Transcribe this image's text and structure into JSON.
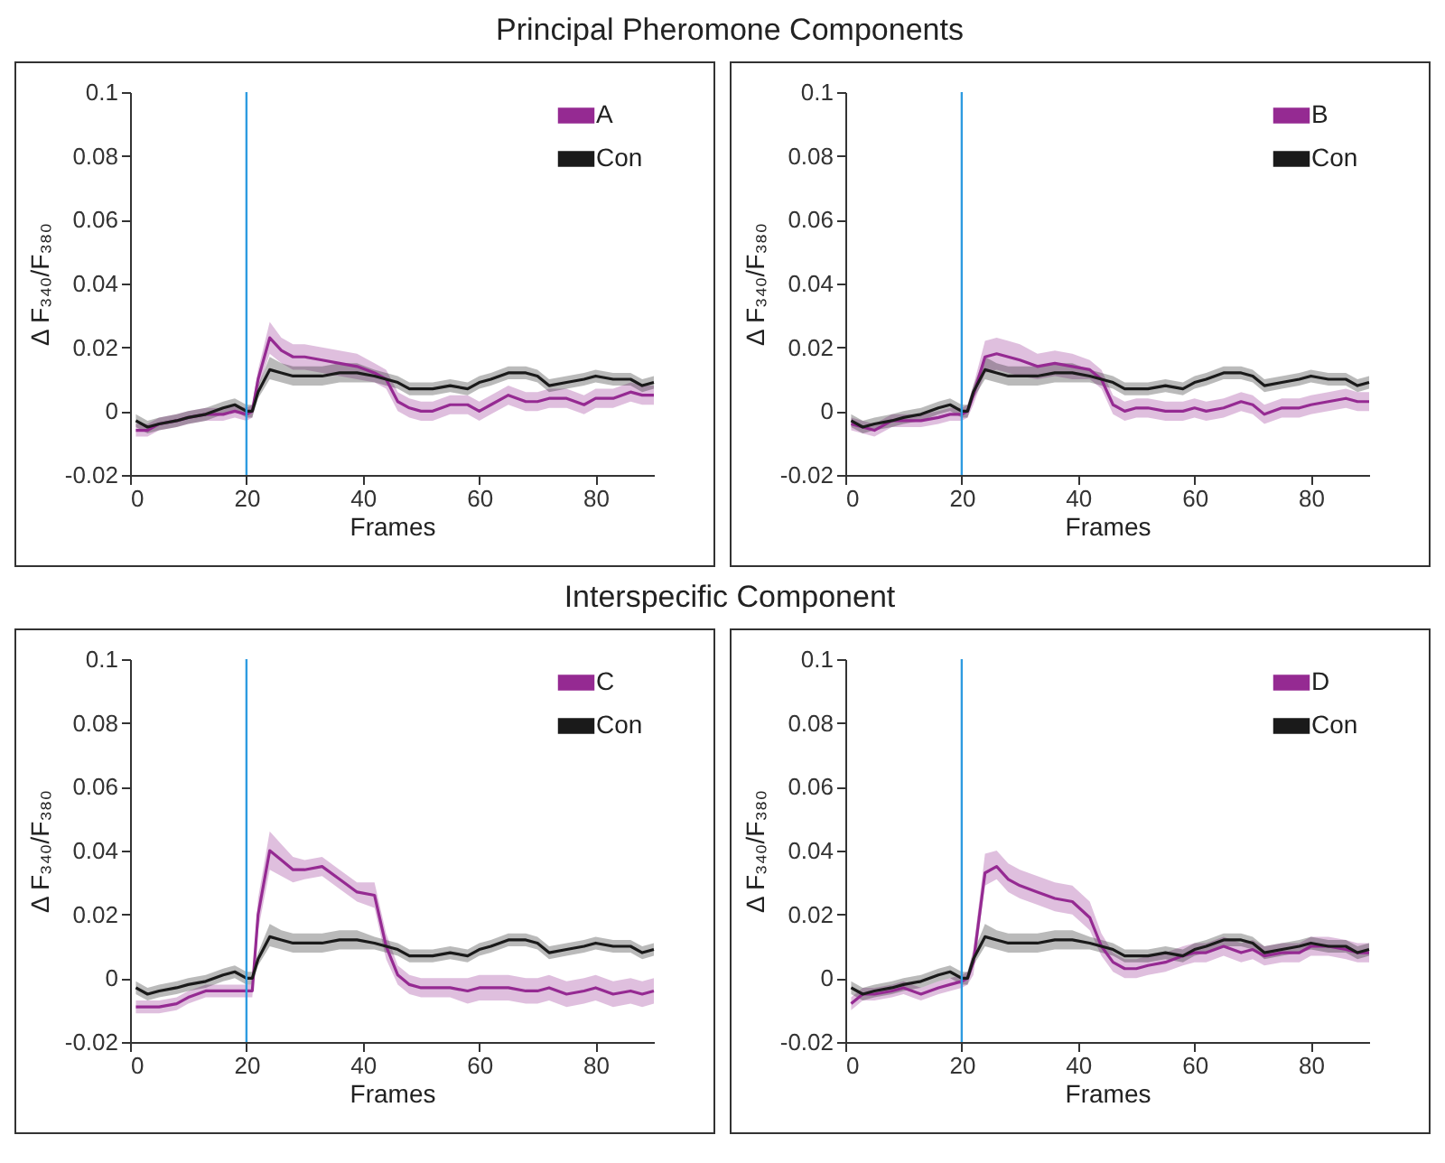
{
  "chart_data": [
    {
      "type": "line",
      "title": "Principal Pheromone Components",
      "xlabel": "Frames",
      "ylabel": "Δ F₃₄₀/F₃₈₀",
      "xlim": [
        0,
        90
      ],
      "xticks": [
        0,
        20,
        40,
        60,
        80
      ],
      "ylim": [
        -0.02,
        0.1
      ],
      "yticks": [
        -0.02,
        0,
        0.02,
        0.04,
        0.06,
        0.08,
        0.1
      ],
      "legend": "top right",
      "ref_lines": [
        {
          "axis": "x",
          "value": 20,
          "color": "#2e9be0"
        }
      ],
      "x": [
        1,
        3,
        5,
        8,
        10,
        13,
        16,
        18,
        20,
        21,
        22,
        24,
        26,
        28,
        30,
        33,
        36,
        39,
        42,
        44,
        46,
        48,
        50,
        52,
        55,
        58,
        60,
        62,
        65,
        68,
        70,
        72,
        75,
        78,
        80,
        83,
        86,
        88,
        90
      ],
      "series": [
        {
          "name": "A",
          "color": "#952a92",
          "values": [
            -0.006,
            -0.006,
            -0.004,
            -0.003,
            -0.002,
            -0.001,
            -0.001,
            0,
            -0.001,
            0,
            0.01,
            0.023,
            0.019,
            0.017,
            0.017,
            0.016,
            0.015,
            0.014,
            0.012,
            0.01,
            0.003,
            0.001,
            0,
            0,
            0.002,
            0.002,
            0,
            0.002,
            0.005,
            0.003,
            0.003,
            0.004,
            0.004,
            0.002,
            0.004,
            0.004,
            0.006,
            0.005,
            0.005
          ],
          "lower": [
            -0.008,
            -0.008,
            -0.006,
            -0.005,
            -0.004,
            -0.003,
            -0.003,
            -0.002,
            -0.003,
            -0.002,
            0.007,
            0.018,
            0.015,
            0.013,
            0.013,
            0.012,
            0.011,
            0.01,
            0.009,
            0.007,
            0,
            -0.002,
            -0.003,
            -0.003,
            -0.001,
            -0.001,
            -0.003,
            -0.001,
            0.002,
            0,
            0,
            0.001,
            0.001,
            -0.001,
            0.001,
            0.001,
            0.003,
            0.002,
            0.002
          ],
          "upper": [
            -0.004,
            -0.004,
            -0.002,
            -0.001,
            0,
            0.001,
            0.001,
            0.002,
            0.001,
            0.002,
            0.013,
            0.028,
            0.023,
            0.021,
            0.021,
            0.02,
            0.019,
            0.018,
            0.015,
            0.013,
            0.006,
            0.004,
            0.003,
            0.003,
            0.005,
            0.005,
            0.003,
            0.005,
            0.008,
            0.006,
            0.006,
            0.007,
            0.007,
            0.005,
            0.007,
            0.007,
            0.009,
            0.008,
            0.008
          ]
        },
        {
          "name": "Con",
          "color": "#1a1a1a",
          "values": [
            -0.003,
            -0.005,
            -0.004,
            -0.003,
            -0.002,
            -0.001,
            0.001,
            0.002,
            0,
            0,
            0.006,
            0.013,
            0.012,
            0.011,
            0.011,
            0.011,
            0.012,
            0.012,
            0.011,
            0.01,
            0.009,
            0.007,
            0.007,
            0.007,
            0.008,
            0.007,
            0.009,
            0.01,
            0.012,
            0.012,
            0.011,
            0.008,
            0.009,
            0.01,
            0.011,
            0.01,
            0.01,
            0.008,
            0.009
          ],
          "lower": [
            -0.005,
            -0.007,
            -0.006,
            -0.005,
            -0.004,
            -0.003,
            -0.001,
            0,
            -0.002,
            -0.002,
            0.004,
            0.01,
            0.009,
            0.008,
            0.008,
            0.008,
            0.009,
            0.009,
            0.009,
            0.008,
            0.007,
            0.005,
            0.005,
            0.005,
            0.006,
            0.005,
            0.007,
            0.008,
            0.01,
            0.01,
            0.009,
            0.006,
            0.007,
            0.008,
            0.009,
            0.008,
            0.008,
            0.006,
            0.007
          ],
          "upper": [
            -0.001,
            -0.003,
            -0.002,
            -0.001,
            0,
            0.001,
            0.003,
            0.004,
            0.002,
            0.002,
            0.008,
            0.017,
            0.015,
            0.014,
            0.014,
            0.014,
            0.015,
            0.015,
            0.013,
            0.012,
            0.011,
            0.009,
            0.009,
            0.009,
            0.01,
            0.009,
            0.011,
            0.012,
            0.014,
            0.014,
            0.013,
            0.01,
            0.011,
            0.012,
            0.013,
            0.012,
            0.012,
            0.01,
            0.011
          ]
        }
      ]
    },
    {
      "type": "line",
      "xlabel": "Frames",
      "ylabel": "Δ F₃₄₀/F₃₈₀",
      "xlim": [
        0,
        90
      ],
      "xticks": [
        0,
        20,
        40,
        60,
        80
      ],
      "ylim": [
        -0.02,
        0.1
      ],
      "yticks": [
        -0.02,
        0,
        0.02,
        0.04,
        0.06,
        0.08,
        0.1
      ],
      "legend": "top right",
      "ref_lines": [
        {
          "axis": "x",
          "value": 20,
          "color": "#2e9be0"
        }
      ],
      "x": [
        1,
        3,
        5,
        8,
        10,
        13,
        16,
        18,
        20,
        21,
        22,
        24,
        26,
        28,
        30,
        33,
        36,
        39,
        42,
        44,
        46,
        48,
        50,
        52,
        55,
        58,
        60,
        62,
        65,
        68,
        70,
        72,
        75,
        78,
        80,
        83,
        86,
        88,
        90
      ],
      "series": [
        {
          "name": "B",
          "color": "#952a92",
          "values": [
            -0.004,
            -0.005,
            -0.006,
            -0.003,
            -0.003,
            -0.003,
            -0.002,
            -0.001,
            -0.001,
            0,
            0.005,
            0.017,
            0.018,
            0.017,
            0.016,
            0.014,
            0.015,
            0.014,
            0.013,
            0.01,
            0.002,
            0,
            0.001,
            0.001,
            0,
            0,
            0.001,
            0,
            0.001,
            0.003,
            0.002,
            -0.001,
            0.001,
            0.001,
            0.002,
            0.003,
            0.004,
            0.003,
            0.003
          ],
          "lower": [
            -0.006,
            -0.007,
            -0.008,
            -0.005,
            -0.005,
            -0.005,
            -0.004,
            -0.003,
            -0.003,
            -0.002,
            0.002,
            0.012,
            0.013,
            0.012,
            0.011,
            0.01,
            0.011,
            0.01,
            0.01,
            0.007,
            -0.001,
            -0.003,
            -0.002,
            -0.002,
            -0.003,
            -0.003,
            -0.002,
            -0.003,
            -0.002,
            0,
            -0.001,
            -0.004,
            -0.002,
            -0.002,
            -0.001,
            0,
            0.001,
            0,
            0
          ],
          "upper": [
            -0.002,
            -0.003,
            -0.004,
            -0.001,
            -0.001,
            -0.001,
            0,
            0.001,
            0.001,
            0.002,
            0.008,
            0.022,
            0.023,
            0.022,
            0.021,
            0.018,
            0.019,
            0.018,
            0.016,
            0.013,
            0.005,
            0.003,
            0.004,
            0.004,
            0.003,
            0.003,
            0.004,
            0.003,
            0.004,
            0.006,
            0.005,
            0.002,
            0.004,
            0.004,
            0.005,
            0.006,
            0.007,
            0.006,
            0.006
          ]
        },
        {
          "name": "Con",
          "color": "#1a1a1a",
          "values": [
            -0.003,
            -0.005,
            -0.004,
            -0.003,
            -0.002,
            -0.001,
            0.001,
            0.002,
            0,
            0,
            0.006,
            0.013,
            0.012,
            0.011,
            0.011,
            0.011,
            0.012,
            0.012,
            0.011,
            0.01,
            0.009,
            0.007,
            0.007,
            0.007,
            0.008,
            0.007,
            0.009,
            0.01,
            0.012,
            0.012,
            0.011,
            0.008,
            0.009,
            0.01,
            0.011,
            0.01,
            0.01,
            0.008,
            0.009
          ],
          "lower": [
            -0.005,
            -0.007,
            -0.006,
            -0.005,
            -0.004,
            -0.003,
            -0.001,
            0,
            -0.002,
            -0.002,
            0.004,
            0.01,
            0.009,
            0.008,
            0.008,
            0.008,
            0.009,
            0.009,
            0.009,
            0.008,
            0.007,
            0.005,
            0.005,
            0.005,
            0.006,
            0.005,
            0.007,
            0.008,
            0.01,
            0.01,
            0.009,
            0.006,
            0.007,
            0.008,
            0.009,
            0.008,
            0.008,
            0.006,
            0.007
          ],
          "upper": [
            -0.001,
            -0.003,
            -0.002,
            -0.001,
            0,
            0.001,
            0.003,
            0.004,
            0.002,
            0.002,
            0.008,
            0.017,
            0.015,
            0.014,
            0.014,
            0.014,
            0.015,
            0.015,
            0.013,
            0.012,
            0.011,
            0.009,
            0.009,
            0.009,
            0.01,
            0.009,
            0.011,
            0.012,
            0.014,
            0.014,
            0.013,
            0.01,
            0.011,
            0.012,
            0.013,
            0.012,
            0.012,
            0.01,
            0.011
          ]
        }
      ]
    },
    {
      "type": "line",
      "title": "Interspecific Component",
      "xlabel": "Frames",
      "ylabel": "Δ F₃₄₀/F₃₈₀",
      "xlim": [
        0,
        90
      ],
      "xticks": [
        0,
        20,
        40,
        60,
        80
      ],
      "ylim": [
        -0.02,
        0.1
      ],
      "yticks": [
        -0.02,
        0,
        0.02,
        0.04,
        0.06,
        0.08,
        0.1
      ],
      "legend": "top right",
      "ref_lines": [
        {
          "axis": "x",
          "value": 20,
          "color": "#2e9be0"
        }
      ],
      "x": [
        1,
        3,
        5,
        8,
        10,
        13,
        16,
        18,
        20,
        21,
        22,
        24,
        26,
        28,
        30,
        33,
        36,
        39,
        42,
        44,
        46,
        48,
        50,
        52,
        55,
        58,
        60,
        62,
        65,
        68,
        70,
        72,
        75,
        78,
        80,
        83,
        86,
        88,
        90
      ],
      "series": [
        {
          "name": "C",
          "color": "#952a92",
          "values": [
            -0.009,
            -0.009,
            -0.009,
            -0.008,
            -0.006,
            -0.004,
            -0.004,
            -0.004,
            -0.004,
            -0.004,
            0.02,
            0.04,
            0.037,
            0.034,
            0.034,
            0.035,
            0.031,
            0.027,
            0.026,
            0.01,
            0.001,
            -0.002,
            -0.003,
            -0.003,
            -0.003,
            -0.004,
            -0.003,
            -0.003,
            -0.003,
            -0.004,
            -0.004,
            -0.003,
            -0.005,
            -0.004,
            -0.003,
            -0.005,
            -0.004,
            -0.005,
            -0.004
          ],
          "lower": [
            -0.011,
            -0.011,
            -0.011,
            -0.01,
            -0.008,
            -0.006,
            -0.006,
            -0.006,
            -0.006,
            -0.006,
            0.015,
            0.034,
            0.032,
            0.03,
            0.031,
            0.032,
            0.028,
            0.024,
            0.022,
            0.006,
            -0.002,
            -0.005,
            -0.006,
            -0.006,
            -0.006,
            -0.008,
            -0.007,
            -0.007,
            -0.007,
            -0.008,
            -0.008,
            -0.007,
            -0.009,
            -0.008,
            -0.007,
            -0.009,
            -0.008,
            -0.009,
            -0.008
          ],
          "upper": [
            -0.007,
            -0.007,
            -0.007,
            -0.006,
            -0.004,
            -0.002,
            -0.002,
            -0.002,
            -0.002,
            -0.002,
            0.025,
            0.046,
            0.042,
            0.038,
            0.037,
            0.038,
            0.034,
            0.03,
            0.03,
            0.014,
            0.004,
            0.001,
            0,
            0,
            0,
            0,
            0.001,
            0.001,
            0.001,
            0,
            0,
            0.001,
            -0.001,
            0,
            0.001,
            -0.001,
            0,
            -0.001,
            0
          ]
        },
        {
          "name": "Con",
          "color": "#1a1a1a",
          "values": [
            -0.003,
            -0.005,
            -0.004,
            -0.003,
            -0.002,
            -0.001,
            0.001,
            0.002,
            0,
            0,
            0.006,
            0.013,
            0.012,
            0.011,
            0.011,
            0.011,
            0.012,
            0.012,
            0.011,
            0.01,
            0.009,
            0.007,
            0.007,
            0.007,
            0.008,
            0.007,
            0.009,
            0.01,
            0.012,
            0.012,
            0.011,
            0.008,
            0.009,
            0.01,
            0.011,
            0.01,
            0.01,
            0.008,
            0.009
          ],
          "lower": [
            -0.005,
            -0.007,
            -0.006,
            -0.005,
            -0.004,
            -0.003,
            -0.001,
            0,
            -0.002,
            -0.002,
            0.004,
            0.01,
            0.009,
            0.008,
            0.008,
            0.008,
            0.009,
            0.009,
            0.009,
            0.008,
            0.007,
            0.005,
            0.005,
            0.005,
            0.006,
            0.005,
            0.007,
            0.008,
            0.01,
            0.01,
            0.009,
            0.006,
            0.007,
            0.008,
            0.009,
            0.008,
            0.008,
            0.006,
            0.007
          ],
          "upper": [
            -0.001,
            -0.003,
            -0.002,
            -0.001,
            0,
            0.001,
            0.003,
            0.004,
            0.002,
            0.002,
            0.008,
            0.017,
            0.015,
            0.014,
            0.014,
            0.014,
            0.015,
            0.015,
            0.013,
            0.012,
            0.011,
            0.009,
            0.009,
            0.009,
            0.01,
            0.009,
            0.011,
            0.012,
            0.014,
            0.014,
            0.013,
            0.01,
            0.011,
            0.012,
            0.013,
            0.012,
            0.012,
            0.01,
            0.011
          ]
        }
      ]
    },
    {
      "type": "line",
      "xlabel": "Frames",
      "ylabel": "Δ F₃₄₀/F₃₈₀",
      "xlim": [
        0,
        90
      ],
      "xticks": [
        0,
        20,
        40,
        60,
        80
      ],
      "ylim": [
        -0.02,
        0.1
      ],
      "yticks": [
        -0.02,
        0,
        0.02,
        0.04,
        0.06,
        0.08,
        0.1
      ],
      "legend": "top right",
      "ref_lines": [
        {
          "axis": "x",
          "value": 20,
          "color": "#2e9be0"
        }
      ],
      "x": [
        1,
        3,
        5,
        8,
        10,
        13,
        16,
        18,
        20,
        21,
        22,
        24,
        26,
        28,
        30,
        33,
        36,
        39,
        42,
        44,
        46,
        48,
        50,
        52,
        55,
        58,
        60,
        62,
        65,
        68,
        70,
        72,
        75,
        78,
        80,
        83,
        86,
        88,
        90
      ],
      "series": [
        {
          "name": "D",
          "color": "#952a92",
          "values": [
            -0.008,
            -0.005,
            -0.005,
            -0.004,
            -0.003,
            -0.005,
            -0.003,
            -0.002,
            -0.001,
            0,
            0.005,
            0.033,
            0.035,
            0.031,
            0.029,
            0.027,
            0.025,
            0.024,
            0.019,
            0.01,
            0.005,
            0.003,
            0.003,
            0.004,
            0.005,
            0.007,
            0.008,
            0.008,
            0.01,
            0.008,
            0.009,
            0.007,
            0.008,
            0.008,
            0.01,
            0.01,
            0.009,
            0.008,
            0.008
          ],
          "lower": [
            -0.01,
            -0.007,
            -0.007,
            -0.006,
            -0.005,
            -0.007,
            -0.005,
            -0.004,
            -0.003,
            -0.002,
            0.001,
            0.029,
            0.031,
            0.027,
            0.025,
            0.023,
            0.021,
            0.02,
            0.015,
            0.007,
            0.002,
            0,
            0,
            0.001,
            0.002,
            0.004,
            0.005,
            0.005,
            0.007,
            0.005,
            0.006,
            0.004,
            0.005,
            0.005,
            0.007,
            0.007,
            0.006,
            0.005,
            0.005
          ],
          "upper": [
            -0.006,
            -0.003,
            -0.003,
            -0.002,
            -0.001,
            -0.003,
            -0.001,
            0,
            0.001,
            0.002,
            0.009,
            0.039,
            0.04,
            0.036,
            0.034,
            0.032,
            0.03,
            0.029,
            0.024,
            0.014,
            0.008,
            0.006,
            0.006,
            0.007,
            0.008,
            0.01,
            0.011,
            0.011,
            0.013,
            0.011,
            0.012,
            0.01,
            0.011,
            0.011,
            0.013,
            0.013,
            0.012,
            0.011,
            0.011
          ]
        },
        {
          "name": "Con",
          "color": "#1a1a1a",
          "values": [
            -0.003,
            -0.005,
            -0.004,
            -0.003,
            -0.002,
            -0.001,
            0.001,
            0.002,
            0,
            0,
            0.006,
            0.013,
            0.012,
            0.011,
            0.011,
            0.011,
            0.012,
            0.012,
            0.011,
            0.01,
            0.009,
            0.007,
            0.007,
            0.007,
            0.008,
            0.007,
            0.009,
            0.01,
            0.012,
            0.012,
            0.011,
            0.008,
            0.009,
            0.01,
            0.011,
            0.01,
            0.01,
            0.008,
            0.009
          ],
          "lower": [
            -0.005,
            -0.007,
            -0.006,
            -0.005,
            -0.004,
            -0.003,
            -0.001,
            0,
            -0.002,
            -0.002,
            0.004,
            0.01,
            0.009,
            0.008,
            0.008,
            0.008,
            0.009,
            0.009,
            0.009,
            0.008,
            0.007,
            0.005,
            0.005,
            0.005,
            0.006,
            0.005,
            0.007,
            0.008,
            0.01,
            0.01,
            0.009,
            0.006,
            0.007,
            0.008,
            0.009,
            0.008,
            0.008,
            0.006,
            0.007
          ],
          "upper": [
            -0.001,
            -0.003,
            -0.002,
            -0.001,
            0,
            0.001,
            0.003,
            0.004,
            0.002,
            0.002,
            0.008,
            0.017,
            0.015,
            0.014,
            0.014,
            0.014,
            0.015,
            0.015,
            0.013,
            0.012,
            0.011,
            0.009,
            0.009,
            0.009,
            0.01,
            0.009,
            0.011,
            0.012,
            0.014,
            0.014,
            0.013,
            0.01,
            0.011,
            0.012,
            0.013,
            0.012,
            0.012,
            0.01,
            0.011
          ]
        }
      ]
    }
  ]
}
